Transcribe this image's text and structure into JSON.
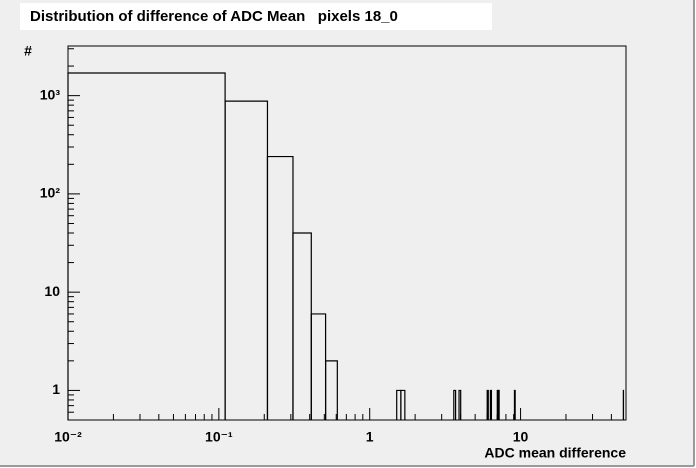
{
  "chart_data": {
    "type": "histogram",
    "title": "Distribution of difference of ADC Mean   pixels 18_0",
    "x_label": "ADC mean difference",
    "y_label": "#",
    "bins": [
      0.01,
      0.11,
      0.21,
      0.31,
      0.41,
      0.51,
      0.61,
      1.51,
      1.61,
      1.71,
      3.61,
      3.71,
      3.91,
      4.01,
      6.01,
      6.11,
      6.31,
      6.41,
      7.01,
      7.11,
      7.21,
      9.11,
      9.21,
      48.01,
      48.11
    ],
    "values": [
      1700,
      880,
      240,
      40,
      6,
      2,
      0,
      1,
      1,
      0,
      1,
      0,
      1,
      0,
      1,
      0,
      1,
      0,
      1,
      1,
      0,
      1,
      0,
      1
    ],
    "color": "#000000",
    "xlim": [
      0.01,
      50
    ],
    "ylim": [
      0.5,
      3200
    ],
    "xlog": true,
    "ylog": true,
    "xticks": [
      {
        "value": 0.01,
        "label": "10⁻²"
      },
      {
        "value": 0.1,
        "label": "10⁻¹"
      },
      1,
      10
    ],
    "yticks": [
      1,
      10,
      {
        "value": 100,
        "label": "10²"
      },
      {
        "value": 1000,
        "label": "10³"
      }
    ]
  }
}
